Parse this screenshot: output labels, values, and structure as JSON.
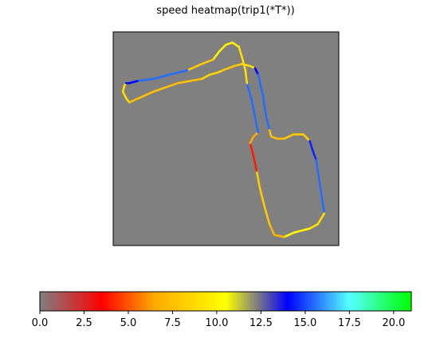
{
  "chart_data": {
    "type": "heatmap",
    "title": "speed heatmap(trip1(*T*))",
    "xlabel": "",
    "ylabel": "",
    "plot_background": "#808080",
    "grid": false,
    "colorbar": {
      "placement": "bottom",
      "range": [
        0,
        21
      ],
      "ticks": [
        0.0,
        2.5,
        5.0,
        7.5,
        10.0,
        12.5,
        15.0,
        17.5,
        20.0
      ],
      "tick_labels": [
        "0.0",
        "2.5",
        "5.0",
        "7.5",
        "10.0",
        "12.5",
        "15.0",
        "17.5",
        "20.0"
      ],
      "color_stops": [
        {
          "value": 0,
          "color": "#808080"
        },
        {
          "value": 3.5,
          "color": "#ff0000"
        },
        {
          "value": 6.5,
          "color": "#ffaa00"
        },
        {
          "value": 10.5,
          "color": "#ffff00"
        },
        {
          "value": 14.0,
          "color": "#0000ff"
        },
        {
          "value": 17.5,
          "color": "#55ffff"
        },
        {
          "value": 21,
          "color": "#00ff00"
        }
      ]
    },
    "track_segments": [
      {
        "speed": 9.0,
        "points": [
          [
            8,
            24
          ],
          [
            7,
            25
          ],
          [
            6,
            28
          ],
          [
            8,
            31
          ],
          [
            10,
            33
          ]
        ]
      },
      {
        "speed": 7.5,
        "points": [
          [
            10,
            33
          ],
          [
            25,
            28
          ],
          [
            40,
            24
          ],
          [
            55,
            22
          ]
        ]
      },
      {
        "speed": 8.5,
        "points": [
          [
            55,
            22
          ],
          [
            60,
            20
          ],
          [
            65,
            19
          ],
          [
            68,
            18
          ]
        ]
      },
      {
        "speed": 7.8,
        "points": [
          [
            68,
            18
          ],
          [
            75,
            16
          ],
          [
            80,
            15
          ]
        ]
      },
      {
        "speed": 9.0,
        "points": [
          [
            80,
            15
          ],
          [
            85,
            16
          ],
          [
            88,
            17
          ]
        ]
      },
      {
        "speed": 14.0,
        "points": [
          [
            88,
            17
          ],
          [
            90,
            20
          ]
        ]
      },
      {
        "speed": 15.5,
        "points": [
          [
            90,
            20
          ],
          [
            93,
            30
          ],
          [
            95,
            40
          ],
          [
            97,
            46
          ]
        ]
      },
      {
        "speed": 7.5,
        "points": [
          [
            97,
            46
          ],
          [
            98,
            49
          ],
          [
            102,
            50
          ],
          [
            106,
            50
          ]
        ]
      },
      {
        "speed": 8.0,
        "points": [
          [
            106,
            50
          ],
          [
            112,
            48
          ],
          [
            118,
            48
          ],
          [
            122,
            51
          ]
        ]
      },
      {
        "speed": 14.5,
        "points": [
          [
            122,
            51
          ],
          [
            124,
            56
          ],
          [
            126,
            60
          ]
        ]
      },
      {
        "speed": 15.5,
        "points": [
          [
            126,
            60
          ],
          [
            128,
            70
          ],
          [
            130,
            80
          ],
          [
            131,
            85
          ]
        ]
      },
      {
        "speed": 9.0,
        "points": [
          [
            131,
            85
          ],
          [
            127,
            90
          ],
          [
            122,
            92
          ]
        ]
      },
      {
        "speed": 10.5,
        "points": [
          [
            122,
            92
          ],
          [
            112,
            94
          ],
          [
            106,
            96
          ]
        ]
      },
      {
        "speed": 7.0,
        "points": [
          [
            106,
            96
          ],
          [
            100,
            95
          ],
          [
            97,
            90
          ]
        ]
      },
      {
        "speed": 8.0,
        "points": [
          [
            97,
            90
          ],
          [
            94,
            82
          ],
          [
            91,
            73
          ],
          [
            89,
            65
          ]
        ]
      },
      {
        "speed": 4.0,
        "points": [
          [
            89,
            65
          ],
          [
            87,
            58
          ],
          [
            85,
            52
          ]
        ]
      },
      {
        "speed": 6.5,
        "points": [
          [
            85,
            52
          ],
          [
            87,
            49
          ],
          [
            90,
            47
          ]
        ]
      },
      {
        "speed": 15.5,
        "points": [
          [
            90,
            47
          ],
          [
            88,
            40
          ],
          [
            86,
            32
          ],
          [
            83,
            24
          ]
        ]
      },
      {
        "speed": 9.0,
        "points": [
          [
            83,
            24
          ],
          [
            82,
            18
          ],
          [
            80,
            12
          ],
          [
            78,
            7
          ]
        ]
      },
      {
        "speed": 10.0,
        "points": [
          [
            78,
            7
          ],
          [
            74,
            5
          ],
          [
            70,
            6
          ],
          [
            66,
            9
          ],
          [
            62,
            13
          ]
        ]
      },
      {
        "speed": 8.0,
        "points": [
          [
            62,
            13
          ],
          [
            55,
            15
          ],
          [
            46,
            18
          ]
        ]
      },
      {
        "speed": 15.5,
        "points": [
          [
            46,
            18
          ],
          [
            35,
            20
          ],
          [
            25,
            22
          ],
          [
            15,
            23
          ]
        ]
      },
      {
        "speed": 14.0,
        "points": [
          [
            15,
            23
          ],
          [
            10,
            24
          ],
          [
            8,
            24
          ]
        ]
      }
    ]
  }
}
